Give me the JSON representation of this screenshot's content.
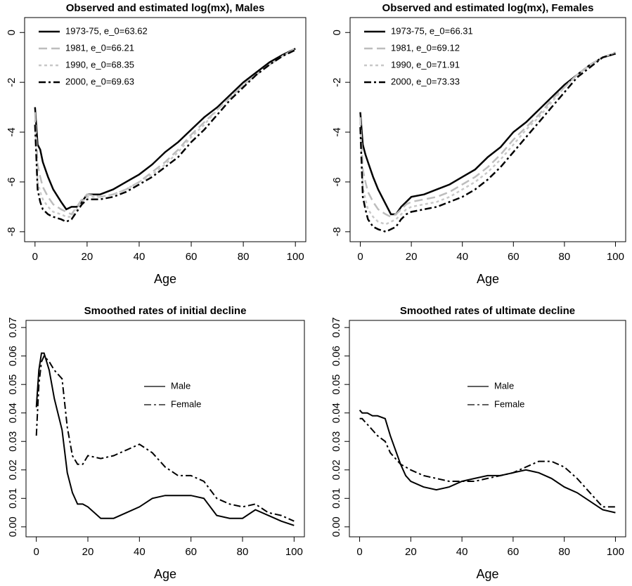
{
  "chart_data": [
    {
      "type": "line",
      "title": "Observed and estimated log(mx), Males",
      "xlabel": "Age",
      "x": [
        0,
        1,
        2,
        3,
        5,
        7,
        10,
        12,
        14,
        16,
        18,
        20,
        25,
        30,
        35,
        40,
        45,
        50,
        55,
        60,
        65,
        70,
        75,
        80,
        85,
        90,
        95,
        100
      ],
      "xlim": [
        -4,
        104
      ],
      "xticks": [
        0,
        20,
        40,
        60,
        80,
        100
      ],
      "ylim": [
        -8.4,
        0.6
      ],
      "yticks": [
        0,
        -2,
        -4,
        -6,
        -8
      ],
      "legend": "top-left",
      "series": [
        {
          "name": "1973-75, e_0=63.62",
          "color": "#000000",
          "dash": "solid",
          "values": [
            -3.0,
            -4.5,
            -4.7,
            -5.2,
            -5.8,
            -6.3,
            -6.8,
            -7.1,
            -7.0,
            -7.0,
            -6.8,
            -6.5,
            -6.5,
            -6.3,
            -6.0,
            -5.7,
            -5.3,
            -4.8,
            -4.4,
            -3.9,
            -3.4,
            -3.0,
            -2.5,
            -2.0,
            -1.6,
            -1.2,
            -0.9,
            -0.65
          ]
        },
        {
          "name": "1981, e_0=66.21",
          "color": "#bdbdbd",
          "dash": "dashed",
          "values": [
            -3.2,
            -5.3,
            -5.8,
            -6.2,
            -6.6,
            -6.9,
            -7.1,
            -7.2,
            -7.3,
            -7.0,
            -6.7,
            -6.5,
            -6.6,
            -6.5,
            -6.3,
            -6.0,
            -5.6,
            -5.2,
            -4.7,
            -4.1,
            -3.6,
            -3.1,
            -2.6,
            -2.1,
            -1.7,
            -1.3,
            -0.95,
            -0.65
          ]
        },
        {
          "name": "1990, e_0=68.35",
          "color": "#c8c8c8",
          "dash": "dotted",
          "values": [
            -3.5,
            -6.0,
            -6.4,
            -6.7,
            -7.0,
            -7.2,
            -7.3,
            -7.4,
            -7.4,
            -7.1,
            -6.8,
            -6.6,
            -6.6,
            -6.5,
            -6.3,
            -6.0,
            -5.7,
            -5.3,
            -4.8,
            -4.2,
            -3.7,
            -3.1,
            -2.6,
            -2.1,
            -1.7,
            -1.3,
            -0.95,
            -0.65
          ]
        },
        {
          "name": "2000, e_0=69.63",
          "color": "#000000",
          "dash": "dotdash",
          "values": [
            -3.7,
            -6.3,
            -6.8,
            -7.1,
            -7.3,
            -7.4,
            -7.5,
            -7.6,
            -7.5,
            -7.2,
            -6.9,
            -6.7,
            -6.7,
            -6.6,
            -6.4,
            -6.1,
            -5.8,
            -5.4,
            -5.0,
            -4.4,
            -3.9,
            -3.3,
            -2.7,
            -2.2,
            -1.7,
            -1.3,
            -0.95,
            -0.7
          ]
        }
      ]
    },
    {
      "type": "line",
      "title": "Observed and estimated log(mx), Females",
      "xlabel": "Age",
      "x": [
        0,
        1,
        2,
        3,
        5,
        7,
        10,
        12,
        14,
        16,
        18,
        20,
        25,
        30,
        35,
        40,
        45,
        50,
        55,
        60,
        65,
        70,
        75,
        80,
        85,
        90,
        95,
        100
      ],
      "xlim": [
        -4,
        104
      ],
      "xticks": [
        0,
        20,
        40,
        60,
        80,
        100
      ],
      "ylim": [
        -8.4,
        0.6
      ],
      "yticks": [
        0,
        -2,
        -4,
        -6,
        -8
      ],
      "legend": "top-left",
      "series": [
        {
          "name": "1973-75, e_0=66.31",
          "color": "#000000",
          "dash": "solid",
          "values": [
            -3.2,
            -4.5,
            -4.9,
            -5.2,
            -5.8,
            -6.3,
            -6.9,
            -7.3,
            -7.3,
            -7.0,
            -6.8,
            -6.6,
            -6.5,
            -6.3,
            -6.1,
            -5.8,
            -5.5,
            -5.0,
            -4.6,
            -4.0,
            -3.6,
            -3.1,
            -2.6,
            -2.1,
            -1.7,
            -1.3,
            -1.0,
            -0.85
          ]
        },
        {
          "name": "1981, e_0=69.12",
          "color": "#bdbdbd",
          "dash": "dashed",
          "values": [
            -3.4,
            -5.5,
            -6.0,
            -6.4,
            -6.8,
            -7.1,
            -7.3,
            -7.4,
            -7.3,
            -7.1,
            -6.9,
            -6.8,
            -6.7,
            -6.6,
            -6.4,
            -6.1,
            -5.8,
            -5.4,
            -4.9,
            -4.3,
            -3.8,
            -3.3,
            -2.7,
            -2.2,
            -1.7,
            -1.3,
            -1.0,
            -0.8
          ]
        },
        {
          "name": "1990, e_0=71.91",
          "color": "#c8c8c8",
          "dash": "dotted",
          "values": [
            -3.6,
            -6.2,
            -6.7,
            -7.1,
            -7.4,
            -7.6,
            -7.7,
            -7.6,
            -7.5,
            -7.3,
            -7.1,
            -7.0,
            -6.9,
            -6.8,
            -6.6,
            -6.3,
            -6.0,
            -5.6,
            -5.1,
            -4.5,
            -3.9,
            -3.4,
            -2.8,
            -2.2,
            -1.7,
            -1.3,
            -1.0,
            -0.8
          ]
        },
        {
          "name": "2000, e_0=73.33",
          "color": "#000000",
          "dash": "dotdash",
          "values": [
            -3.8,
            -6.6,
            -7.1,
            -7.5,
            -7.8,
            -7.9,
            -8.0,
            -7.9,
            -7.8,
            -7.5,
            -7.3,
            -7.2,
            -7.1,
            -7.0,
            -6.8,
            -6.6,
            -6.3,
            -5.9,
            -5.4,
            -4.8,
            -4.2,
            -3.6,
            -3.0,
            -2.4,
            -1.8,
            -1.4,
            -1.0,
            -0.85
          ]
        }
      ]
    },
    {
      "type": "line",
      "title": "Smoothed rates of initial decline",
      "xlabel": "Age",
      "x": [
        0,
        1,
        2,
        3,
        5,
        7,
        10,
        12,
        14,
        16,
        18,
        20,
        25,
        30,
        35,
        40,
        45,
        50,
        55,
        60,
        65,
        70,
        75,
        80,
        85,
        90,
        95,
        100
      ],
      "xlim": [
        -4,
        104
      ],
      "xticks": [
        0,
        20,
        40,
        60,
        80,
        100
      ],
      "ylim": [
        -0.0035,
        0.0725
      ],
      "yticks": [
        {
          "value": 0,
          "label": "0.00"
        },
        0.01,
        0.02,
        0.03,
        0.04,
        0.05,
        0.06,
        0.07
      ],
      "legend": "center",
      "series": [
        {
          "name": "Male",
          "color": "#000000",
          "dash": "solid",
          "values": [
            0.042,
            0.055,
            0.061,
            0.061,
            0.055,
            0.045,
            0.034,
            0.019,
            0.012,
            0.008,
            0.008,
            0.007,
            0.003,
            0.003,
            0.005,
            0.007,
            0.01,
            0.011,
            0.011,
            0.011,
            0.01,
            0.004,
            0.003,
            0.003,
            0.006,
            0.004,
            0.002,
            0.0005
          ]
        },
        {
          "name": "Female",
          "color": "#000000",
          "dash": "dotdash",
          "values": [
            0.032,
            0.05,
            0.058,
            0.06,
            0.058,
            0.055,
            0.052,
            0.035,
            0.025,
            0.022,
            0.022,
            0.025,
            0.024,
            0.025,
            0.027,
            0.029,
            0.026,
            0.021,
            0.018,
            0.018,
            0.016,
            0.01,
            0.008,
            0.007,
            0.008,
            0.005,
            0.004,
            0.002
          ]
        }
      ]
    },
    {
      "type": "line",
      "title": "Smoothed rates of ultimate decline",
      "xlabel": "Age",
      "x": [
        0,
        1,
        2,
        3,
        5,
        7,
        10,
        12,
        14,
        16,
        18,
        20,
        25,
        30,
        35,
        40,
        45,
        50,
        55,
        60,
        65,
        70,
        75,
        80,
        85,
        90,
        95,
        100
      ],
      "xlim": [
        -4,
        104
      ],
      "xticks": [
        0,
        20,
        40,
        60,
        80,
        100
      ],
      "ylim": [
        -0.0035,
        0.0725
      ],
      "yticks": [
        {
          "value": 0,
          "label": "0.00"
        },
        0.01,
        0.02,
        0.03,
        0.04,
        0.05,
        0.06,
        0.07
      ],
      "legend": "center",
      "series": [
        {
          "name": "Male",
          "color": "#000000",
          "dash": "solid",
          "values": [
            0.041,
            0.04,
            0.04,
            0.04,
            0.039,
            0.039,
            0.038,
            0.032,
            0.027,
            0.022,
            0.018,
            0.016,
            0.014,
            0.013,
            0.014,
            0.016,
            0.017,
            0.018,
            0.018,
            0.019,
            0.02,
            0.019,
            0.017,
            0.014,
            0.012,
            0.009,
            0.006,
            0.005
          ]
        },
        {
          "name": "Female",
          "color": "#000000",
          "dash": "dotdash",
          "values": [
            0.038,
            0.038,
            0.037,
            0.036,
            0.034,
            0.032,
            0.03,
            0.026,
            0.024,
            0.022,
            0.021,
            0.02,
            0.018,
            0.017,
            0.016,
            0.016,
            0.016,
            0.017,
            0.018,
            0.019,
            0.021,
            0.023,
            0.023,
            0.021,
            0.017,
            0.012,
            0.007,
            0.007
          ]
        }
      ]
    }
  ]
}
